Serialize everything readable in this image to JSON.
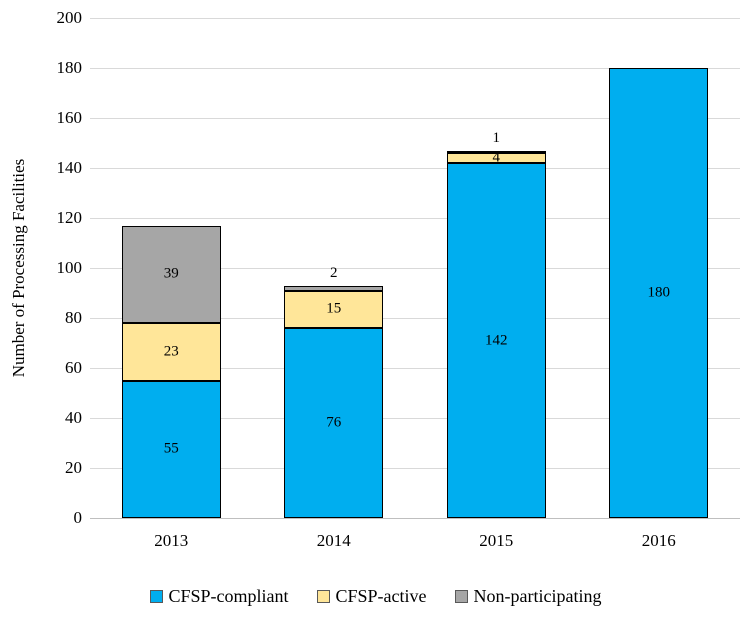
{
  "chart_data": {
    "type": "bar",
    "stacked": true,
    "title": "",
    "xlabel": "",
    "ylabel": "Number of Processing Facilities",
    "ylim": [
      0,
      200
    ],
    "ytick_step": 20,
    "ytick_labels": [
      "0",
      "20",
      "40",
      "60",
      "80",
      "100",
      "120",
      "140",
      "160",
      "180",
      "200"
    ],
    "grid": true,
    "legend_position": "bottom",
    "categories": [
      "2013",
      "2014",
      "2015",
      "2016"
    ],
    "series": [
      {
        "name": "CFSP-compliant",
        "color": "#00AEEF",
        "values": [
          55,
          76,
          142,
          180
        ],
        "label_pos": [
          "center",
          "center",
          "center",
          "center"
        ]
      },
      {
        "name": "CFSP-active",
        "color": "#FFE699",
        "values": [
          23,
          15,
          4,
          0
        ],
        "label_pos": [
          "center",
          "center",
          "center",
          null
        ]
      },
      {
        "name": "Non-participating",
        "color": "#A6A6A6",
        "values": [
          39,
          2,
          1,
          0
        ],
        "label_pos": [
          "center",
          "above",
          "above",
          null
        ]
      }
    ]
  },
  "colors": {
    "background": "#FFFFFF",
    "grid": "#D9D9D9",
    "axis": "#BFBFBF",
    "bar_border": "#000000",
    "text": "#000000",
    "legend_marker_border": "#595959"
  }
}
